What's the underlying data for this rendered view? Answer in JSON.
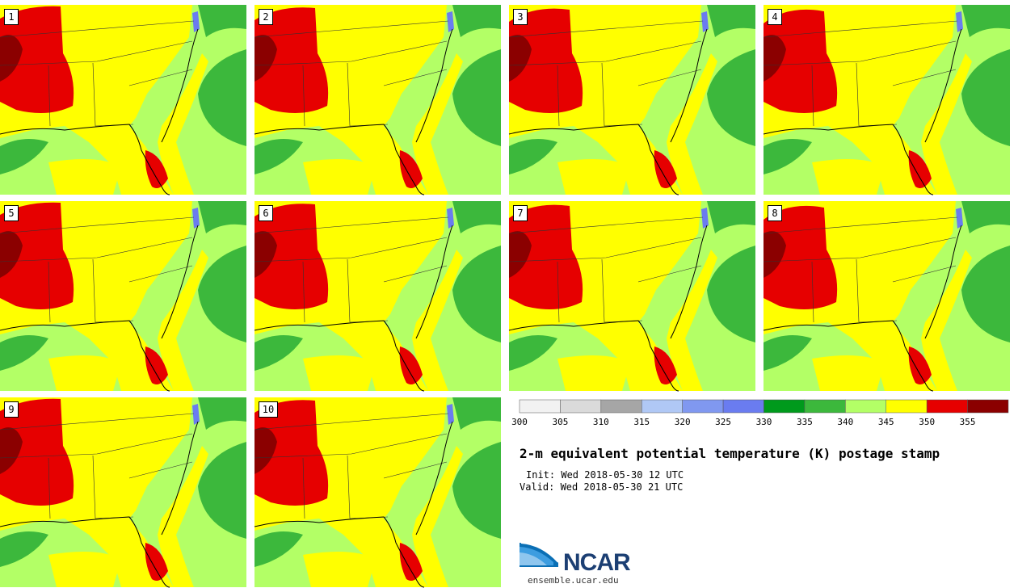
{
  "title": "2-m equivalent potential temperature (K) postage stamp",
  "init": "Init: Wed 2018-05-30 12 UTC",
  "valid": "Valid: Wed 2018-05-30 21 UTC",
  "logo": {
    "name": "NCAR",
    "url": "ensemble.ucar.edu"
  },
  "members": [
    "1",
    "2",
    "3",
    "4",
    "5",
    "6",
    "7",
    "8",
    "9",
    "10"
  ],
  "colorbar": {
    "ticks": [
      "300",
      "305",
      "310",
      "315",
      "320",
      "325",
      "330",
      "335",
      "340",
      "345",
      "350",
      "355"
    ],
    "colors": [
      "#f2f2f2",
      "#dadada",
      "#a6a6a6",
      "#b0c8f5",
      "#8098f0",
      "#6a7cf0",
      "#009a1c",
      "#3cb83c",
      "#b3ff66",
      "#ffff00",
      "#e60000",
      "#8b0000"
    ]
  },
  "map": {
    "field_colors": {
      "ocean_east": "#b3ff66",
      "gulf_warm": "#ffff00",
      "deep_ocean": "#3cb83c",
      "hot": "#e60000",
      "hottest": "#8b0000",
      "inland_water": "#6a7cf0"
    }
  }
}
